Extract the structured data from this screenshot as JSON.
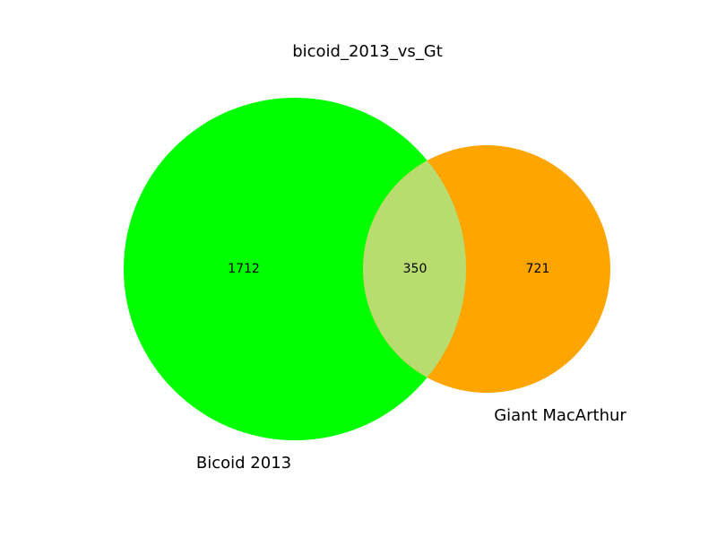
{
  "title": "bicoid_2013_vs_Gt",
  "sets": [
    {
      "key": "a",
      "label": "Bicoid 2013",
      "only_count": "1712",
      "color": "#00ff00"
    },
    {
      "key": "b",
      "label": "Giant MacArthur",
      "only_count": "721",
      "color": "#ffa500"
    }
  ],
  "intersection": {
    "count": "350",
    "color": "#b9dc6f"
  }
}
